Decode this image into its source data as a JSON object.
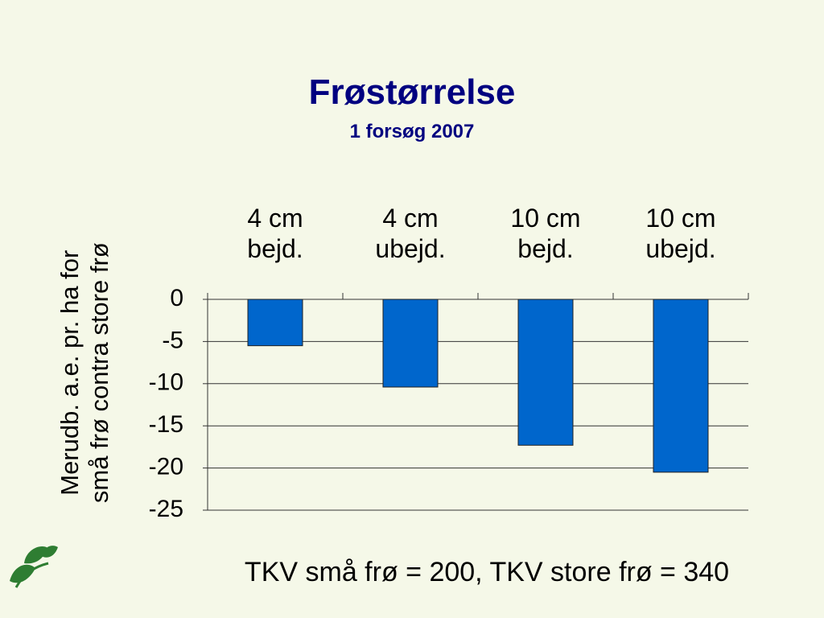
{
  "chart_data": {
    "type": "bar",
    "title": "Frøstørrelse",
    "subtitle": "1 forsøg 2007",
    "y_label": "Merudb. a.e. pr. ha for\nsmå frø contra store frø",
    "categories": [
      "4 cm\nbejd.",
      "4 cm\nubejd.",
      "10 cm\nbejd.",
      "10 cm\nubejd."
    ],
    "values": [
      -5.5,
      -10.4,
      -17.3,
      -20.5
    ],
    "color": "#0066cc",
    "ylim": [
      -25,
      0
    ],
    "yticks": [
      0,
      -5,
      -10,
      -15,
      -20,
      -25
    ],
    "grid": true,
    "annotation": "TKV små frø = 200, TKV store frø = 340"
  }
}
